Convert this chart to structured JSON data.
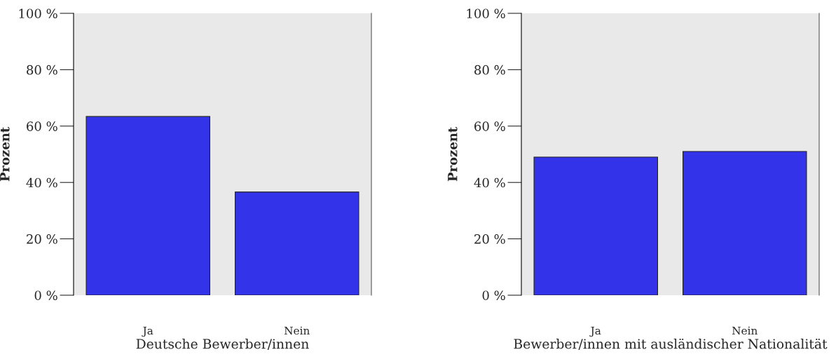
{
  "chart_data": [
    {
      "type": "bar",
      "categories": [
        "Ja",
        "Nein"
      ],
      "values": [
        63.4,
        36.6
      ],
      "color": "#3333ea",
      "xlabel": "Deutsche Bewerber/innen",
      "ylabel": "Prozent",
      "ylim": [
        0,
        100
      ],
      "yticks": [
        {
          "value": 0,
          "label": "0 %"
        },
        {
          "value": 20,
          "label": "20 %"
        },
        {
          "value": 40,
          "label": "40 %"
        },
        {
          "value": 60,
          "label": "60 %"
        },
        {
          "value": 80,
          "label": "80 %"
        },
        {
          "value": 100,
          "label": "100 %"
        }
      ],
      "grid": false
    },
    {
      "type": "bar",
      "categories": [
        "Ja",
        "Nein"
      ],
      "values": [
        49.0,
        51.0
      ],
      "color": "#3333ea",
      "xlabel": "Bewerber/innen mit ausländischer Nationalität",
      "ylabel": "Prozent",
      "ylim": [
        0,
        100
      ],
      "yticks": [
        {
          "value": 0,
          "label": "0 %"
        },
        {
          "value": 20,
          "label": "20 %"
        },
        {
          "value": 40,
          "label": "40 %"
        },
        {
          "value": 60,
          "label": "60 %"
        },
        {
          "value": 80,
          "label": "80 %"
        },
        {
          "value": 100,
          "label": "100 %"
        }
      ],
      "grid": false
    }
  ]
}
